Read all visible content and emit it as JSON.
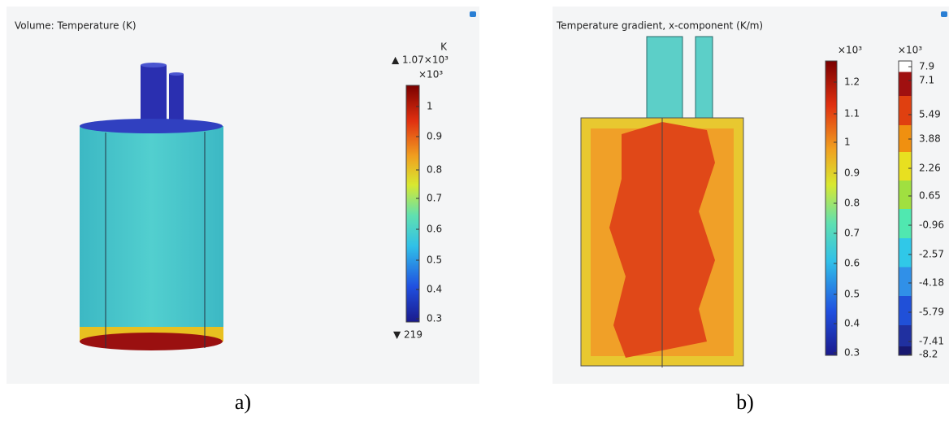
{
  "panels": [
    {
      "title": "Volume: Temperature (K)",
      "colorbars": [
        {
          "unit": "K",
          "max_label": "▲ 1.07×10³",
          "scale": "×10³",
          "ticks": [
            "1",
            "0.9",
            "0.8",
            "0.7",
            "0.6",
            "0.5",
            "0.4",
            "0.3"
          ],
          "min_label": "▼ 219"
        }
      ],
      "caption": "a)"
    },
    {
      "title": "Temperature gradient, x-component (K/m)",
      "colorbars": [
        {
          "scale": "×10³",
          "ticks": [
            "1.2",
            "1.1",
            "1",
            "0.9",
            "0.8",
            "0.7",
            "0.6",
            "0.5",
            "0.4",
            "0.3"
          ]
        },
        {
          "scale": "×10³",
          "ticks": [
            "7.9",
            "7.1",
            "5.49",
            "3.88",
            "2.26",
            "0.65",
            "-0.96",
            "-2.57",
            "-4.18",
            "-5.79",
            "-7.41",
            "-8.2"
          ]
        }
      ],
      "caption": "b)"
    }
  ]
}
